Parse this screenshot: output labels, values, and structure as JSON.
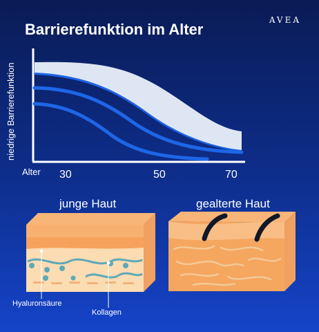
{
  "header": {
    "title": "Barrierefunktion im Alter",
    "brand": "AVEA"
  },
  "chart": {
    "ylabel": "niedrige Barrierefunktion",
    "xlabel": "Alter",
    "ticks": [
      "30",
      "50",
      "70"
    ]
  },
  "illustration": {
    "young_label": "junge Haut",
    "old_label": "gealterte Haut",
    "hyaluron_label": "Hyaluronsäure",
    "kollagen_label": "Kollagen"
  },
  "colors": {
    "bg_top": "#0a1b55",
    "bg_bottom": "#1544c9",
    "band_light": "#dfe6f3",
    "curve_blue": "#1d66e8",
    "skin_top": "#f5a968",
    "skin_side": "#f0a060",
    "skin_inner": "#fbdcb3",
    "wave_teal": "#5ea8b8"
  },
  "chart_data": {
    "type": "area",
    "xlabel": "Alter",
    "ylabel": "niedrige Barrierefunktion",
    "x_ticks": [
      30,
      50,
      70
    ],
    "grid": false
  }
}
